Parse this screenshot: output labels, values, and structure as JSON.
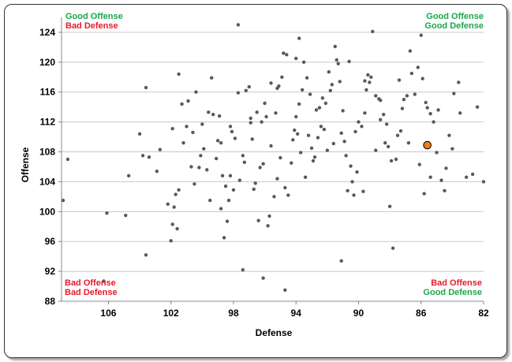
{
  "chart_data": {
    "type": "scatter",
    "xlabel": "Defense",
    "ylabel": "Offense",
    "xlim": [
      109,
      82
    ],
    "ylim": [
      88,
      126
    ],
    "x_reversed": true,
    "xticks": [
      106,
      102,
      98,
      94,
      90,
      86,
      82
    ],
    "yticks": [
      88,
      92,
      96,
      100,
      104,
      108,
      112,
      116,
      120,
      124
    ],
    "grid": "horizontal",
    "point_color": "#595959",
    "highlight_color": "#f07d1a",
    "annotations": {
      "top_left": [
        "Good Offense",
        "Bad Defense"
      ],
      "top_right": [
        "Good Offense",
        "Good Defense"
      ],
      "bottom_left": [
        "Bad Offense",
        "Bad Defense"
      ],
      "bottom_right": [
        "Bad Offense",
        "Good Defense"
      ]
    },
    "annotation_colors": {
      "good": "#1aa64a",
      "bad": "#e8192c"
    },
    "highlight": {
      "x": 85.6,
      "y": 108.9
    },
    "points": [
      [
        108.9,
        101.5
      ],
      [
        108.6,
        107.0
      ],
      [
        106.1,
        99.8
      ],
      [
        104.9,
        99.5
      ],
      [
        104.7,
        104.8
      ],
      [
        104.0,
        110.4
      ],
      [
        103.8,
        107.5
      ],
      [
        103.4,
        107.3
      ],
      [
        103.6,
        116.6
      ],
      [
        102.9,
        105.4
      ],
      [
        102.7,
        108.3
      ],
      [
        102.2,
        101.0
      ],
      [
        101.9,
        98.3
      ],
      [
        101.6,
        97.7
      ],
      [
        101.7,
        102.3
      ],
      [
        101.5,
        102.9
      ],
      [
        101.9,
        111.1
      ],
      [
        101.5,
        118.4
      ],
      [
        101.3,
        114.4
      ],
      [
        101.2,
        109.2
      ],
      [
        101.0,
        111.4
      ],
      [
        100.6,
        110.6
      ],
      [
        100.7,
        106.0
      ],
      [
        100.5,
        103.7
      ],
      [
        100.4,
        116.0
      ],
      [
        100.1,
        107.5
      ],
      [
        99.9,
        108.4
      ],
      [
        100.0,
        111.7
      ],
      [
        99.7,
        105.6
      ],
      [
        99.6,
        113.3
      ],
      [
        99.4,
        117.9
      ],
      [
        99.3,
        113.0
      ],
      [
        99.0,
        109.5
      ],
      [
        98.8,
        100.4
      ],
      [
        98.7,
        104.8
      ],
      [
        98.8,
        109.2
      ],
      [
        98.5,
        103.4
      ],
      [
        98.6,
        96.5
      ],
      [
        98.4,
        98.7
      ],
      [
        98.3,
        101.5
      ],
      [
        98.2,
        104.8
      ],
      [
        98.1,
        110.7
      ],
      [
        98.2,
        111.4
      ],
      [
        97.9,
        109.8
      ],
      [
        97.7,
        125.0
      ],
      [
        97.6,
        104.2
      ],
      [
        97.7,
        115.9
      ],
      [
        97.4,
        107.5
      ],
      [
        97.2,
        116.2
      ],
      [
        97.0,
        116.7
      ],
      [
        96.9,
        112.5
      ],
      [
        96.7,
        103.0
      ],
      [
        96.6,
        103.8
      ],
      [
        96.3,
        105.9
      ],
      [
        96.1,
        106.4
      ],
      [
        96.5,
        113.3
      ],
      [
        96.2,
        112.0
      ],
      [
        96.0,
        114.5
      ],
      [
        95.8,
        98.1
      ],
      [
        95.7,
        99.4
      ],
      [
        95.4,
        102.0
      ],
      [
        95.3,
        113.2
      ],
      [
        95.0,
        107.2
      ],
      [
        95.2,
        116.5
      ],
      [
        95.6,
        117.2
      ],
      [
        94.9,
        118.0
      ],
      [
        94.8,
        121.2
      ],
      [
        94.6,
        121.0
      ],
      [
        94.7,
        103.2
      ],
      [
        94.5,
        102.2
      ],
      [
        94.3,
        106.5
      ],
      [
        94.1,
        110.9
      ],
      [
        94.0,
        112.7
      ],
      [
        93.8,
        114.4
      ],
      [
        93.6,
        116.3
      ],
      [
        94.0,
        120.5
      ],
      [
        93.8,
        123.2
      ],
      [
        93.5,
        120.0
      ],
      [
        93.3,
        117.9
      ],
      [
        93.2,
        110.2
      ],
      [
        93.0,
        108.5
      ],
      [
        92.9,
        106.8
      ],
      [
        92.6,
        109.9
      ],
      [
        92.4,
        111.4
      ],
      [
        92.5,
        113.9
      ],
      [
        92.3,
        115.2
      ],
      [
        92.1,
        114.5
      ],
      [
        91.8,
        116.2
      ],
      [
        91.7,
        117.0
      ],
      [
        91.9,
        118.7
      ],
      [
        91.5,
        122.1
      ],
      [
        91.4,
        120.3
      ],
      [
        91.3,
        119.8
      ],
      [
        91.2,
        117.4
      ],
      [
        91.1,
        110.5
      ],
      [
        90.9,
        109.4
      ],
      [
        90.8,
        107.5
      ],
      [
        90.5,
        106.1
      ],
      [
        90.4,
        104.0
      ],
      [
        90.7,
        102.8
      ],
      [
        90.3,
        102.2
      ],
      [
        90.0,
        112.0
      ],
      [
        89.8,
        111.4
      ],
      [
        89.6,
        113.2
      ],
      [
        89.5,
        116.3
      ],
      [
        89.6,
        117.5
      ],
      [
        89.4,
        118.3
      ],
      [
        89.2,
        118.0
      ],
      [
        88.9,
        115.5
      ],
      [
        89.1,
        124.1
      ],
      [
        88.7,
        115.1
      ],
      [
        88.6,
        114.9
      ],
      [
        88.4,
        113.0
      ],
      [
        88.2,
        111.7
      ],
      [
        88.3,
        109.2
      ],
      [
        88.1,
        108.7
      ],
      [
        87.9,
        106.8
      ],
      [
        87.6,
        107.0
      ],
      [
        87.3,
        110.8
      ],
      [
        87.4,
        117.6
      ],
      [
        87.1,
        115.0
      ],
      [
        86.9,
        115.5
      ],
      [
        86.7,
        121.5
      ],
      [
        86.6,
        118.5
      ],
      [
        86.4,
        115.7
      ],
      [
        86.2,
        119.3
      ],
      [
        86.0,
        123.6
      ],
      [
        85.9,
        117.8
      ],
      [
        85.7,
        114.6
      ],
      [
        85.6,
        113.9
      ],
      [
        85.4,
        113.1
      ],
      [
        85.2,
        112.0
      ],
      [
        85.0,
        107.9
      ],
      [
        84.7,
        104.2
      ],
      [
        84.5,
        102.8
      ],
      [
        84.4,
        105.8
      ],
      [
        84.2,
        110.2
      ],
      [
        84.0,
        108.4
      ],
      [
        83.9,
        115.8
      ],
      [
        83.6,
        117.3
      ],
      [
        83.5,
        113.2
      ],
      [
        83.1,
        104.6
      ],
      [
        82.7,
        105.0
      ],
      [
        82.4,
        114.0
      ],
      [
        82.0,
        104.0
      ],
      [
        96.9,
        111.9
      ],
      [
        95.1,
        116.8
      ],
      [
        93.1,
        115.7
      ],
      [
        89.7,
        102.7
      ],
      [
        87.2,
        113.8
      ],
      [
        88.6,
        112.3
      ],
      [
        90.2,
        110.7
      ],
      [
        91.0,
        113.5
      ],
      [
        92.0,
        108.2
      ],
      [
        92.8,
        107.3
      ],
      [
        93.4,
        104.6
      ],
      [
        94.2,
        109.6
      ],
      [
        95.9,
        112.7
      ],
      [
        96.8,
        109.7
      ],
      [
        98.0,
        102.9
      ],
      [
        99.1,
        107.1
      ],
      [
        100.2,
        105.9
      ],
      [
        101.8,
        100.6
      ],
      [
        102.0,
        96.1
      ],
      [
        97.4,
        92.2
      ],
      [
        96.1,
        91.1
      ],
      [
        94.7,
        89.5
      ],
      [
        91.1,
        93.4
      ],
      [
        87.8,
        95.1
      ],
      [
        103.6,
        94.2
      ],
      [
        106.3,
        90.7
      ],
      [
        85.4,
        104.6
      ],
      [
        86.1,
        106.3
      ],
      [
        90.6,
        120.1
      ],
      [
        89.3,
        117.3
      ],
      [
        92.7,
        113.6
      ],
      [
        93.9,
        110.4
      ],
      [
        95.6,
        108.8
      ],
      [
        97.3,
        106.6
      ],
      [
        98.9,
        112.8
      ],
      [
        100.9,
        114.8
      ],
      [
        99.5,
        101.5
      ],
      [
        96.4,
        98.8
      ],
      [
        95.2,
        104.4
      ],
      [
        93.7,
        107.9
      ],
      [
        92.2,
        111.0
      ],
      [
        91.6,
        109.1
      ],
      [
        90.1,
        105.3
      ],
      [
        88.9,
        108.2
      ],
      [
        87.5,
        110.2
      ],
      [
        86.8,
        109.2
      ],
      [
        84.9,
        113.6
      ],
      [
        85.8,
        102.4
      ],
      [
        88.0,
        100.7
      ]
    ]
  }
}
